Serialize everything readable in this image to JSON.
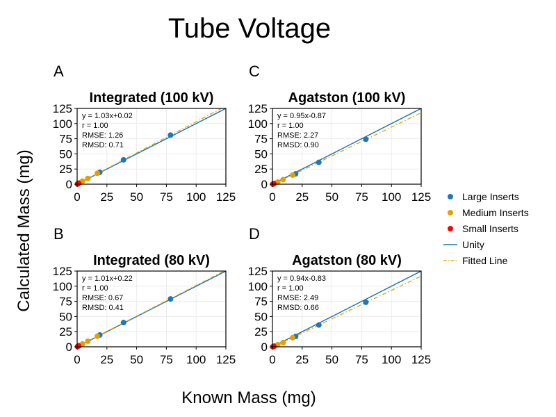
{
  "figure": {
    "title": "Tube Voltage",
    "xlabel": "Known Mass (mg)",
    "ylabel": "Calculated Mass (mg)"
  },
  "legend": {
    "placement": "right",
    "entries": [
      {
        "label": "Large Inserts",
        "kind": "marker",
        "color": "#1f77b4"
      },
      {
        "label": "Medium Inserts",
        "kind": "marker",
        "color": "#e69f00"
      },
      {
        "label": "Small Inserts",
        "kind": "marker",
        "color": "#ff0000"
      },
      {
        "label": "Unity",
        "kind": "line",
        "color": "#1f77b4"
      },
      {
        "label": "Fitted Line",
        "kind": "dashdot",
        "color": "#e69f00"
      }
    ]
  },
  "chart_data": [
    {
      "type": "scatter",
      "letter": "A",
      "title": "Integrated (100 kV)",
      "xlim": [
        0,
        125
      ],
      "ylim": [
        0,
        125
      ],
      "xticks": [
        0,
        25,
        50,
        75,
        100,
        125
      ],
      "yticks": [
        0,
        25,
        50,
        75,
        100,
        125
      ],
      "grid": true,
      "stats": [
        "y = 1.03x+0.02",
        "r = 1.00",
        "RMSE: 1.26",
        "RMSD: 0.71"
      ],
      "fit": {
        "slope": 1.03,
        "intercept": 0.02
      },
      "series": [
        {
          "name": "Large Inserts",
          "points": [
            [
              19,
              19.6
            ],
            [
              39,
              40.2
            ],
            [
              78.5,
              81
            ]
          ]
        },
        {
          "name": "Medium Inserts",
          "points": [
            [
              2,
              2.5
            ],
            [
              4.5,
              5
            ],
            [
              9,
              9.5
            ],
            [
              17,
              18
            ]
          ]
        },
        {
          "name": "Small Inserts",
          "points": [
            [
              0.3,
              0.3
            ],
            [
              0.6,
              0.6
            ],
            [
              1.2,
              1.3
            ]
          ]
        }
      ]
    },
    {
      "type": "scatter",
      "letter": "C",
      "title": "Agatston (100 kV)",
      "xlim": [
        0,
        125
      ],
      "ylim": [
        0,
        125
      ],
      "xticks": [
        0,
        25,
        50,
        75,
        100,
        125
      ],
      "yticks": [
        0,
        25,
        50,
        75,
        100,
        125
      ],
      "grid": true,
      "stats": [
        "y = 0.95x-0.87",
        "r = 1.00",
        "RMSE: 2.27",
        "RMSD: 0.90"
      ],
      "fit": {
        "slope": 0.95,
        "intercept": -0.87
      },
      "series": [
        {
          "name": "Large Inserts",
          "points": [
            [
              19.5,
              17
            ],
            [
              39,
              36
            ],
            [
              78.5,
              74
            ]
          ]
        },
        {
          "name": "Medium Inserts",
          "points": [
            [
              2,
              1.5
            ],
            [
              4.5,
              3.5
            ],
            [
              9,
              7.5
            ],
            [
              17,
              15
            ]
          ]
        },
        {
          "name": "Small Inserts",
          "points": [
            [
              0.3,
              0.1
            ],
            [
              0.6,
              0.3
            ],
            [
              1.2,
              0.8
            ]
          ]
        }
      ]
    },
    {
      "type": "scatter",
      "letter": "B",
      "title": "Integrated (80 kV)",
      "xlim": [
        0,
        125
      ],
      "ylim": [
        0,
        125
      ],
      "xticks": [
        0,
        25,
        50,
        75,
        100,
        125
      ],
      "yticks": [
        0,
        25,
        50,
        75,
        100,
        125
      ],
      "grid": true,
      "stats": [
        "y = 1.01x+0.22",
        "r = 1.00",
        "RMSE: 0.67",
        "RMSD: 0.41"
      ],
      "fit": {
        "slope": 1.01,
        "intercept": 0.22
      },
      "series": [
        {
          "name": "Large Inserts",
          "points": [
            [
              19,
              19.5
            ],
            [
              39,
              40
            ],
            [
              78.5,
              79
            ]
          ]
        },
        {
          "name": "Medium Inserts",
          "points": [
            [
              2,
              2.3
            ],
            [
              4.5,
              4.8
            ],
            [
              9,
              9.2
            ],
            [
              17,
              17.5
            ]
          ]
        },
        {
          "name": "Small Inserts",
          "points": [
            [
              0.3,
              0.4
            ],
            [
              0.6,
              0.7
            ],
            [
              1.2,
              1.4
            ]
          ]
        }
      ]
    },
    {
      "type": "scatter",
      "letter": "D",
      "title": "Agatston (80 kV)",
      "xlim": [
        0,
        125
      ],
      "ylim": [
        0,
        125
      ],
      "xticks": [
        0,
        25,
        50,
        75,
        100,
        125
      ],
      "yticks": [
        0,
        25,
        50,
        75,
        100,
        125
      ],
      "grid": true,
      "stats": [
        "y = 0.94x-0.83",
        "r = 1.00",
        "RMSE: 2.49",
        "RMSD: 0.66"
      ],
      "fit": {
        "slope": 0.94,
        "intercept": -0.83
      },
      "series": [
        {
          "name": "Large Inserts",
          "points": [
            [
              19.5,
              17
            ],
            [
              39,
              36
            ],
            [
              78.5,
              73.5
            ]
          ]
        },
        {
          "name": "Medium Inserts",
          "points": [
            [
              2,
              1.5
            ],
            [
              4.5,
              3.5
            ],
            [
              9,
              7
            ],
            [
              17,
              15
            ]
          ]
        },
        {
          "name": "Small Inserts",
          "points": [
            [
              0.3,
              0.1
            ],
            [
              0.6,
              0.3
            ],
            [
              1.2,
              0.8
            ]
          ]
        }
      ]
    }
  ]
}
